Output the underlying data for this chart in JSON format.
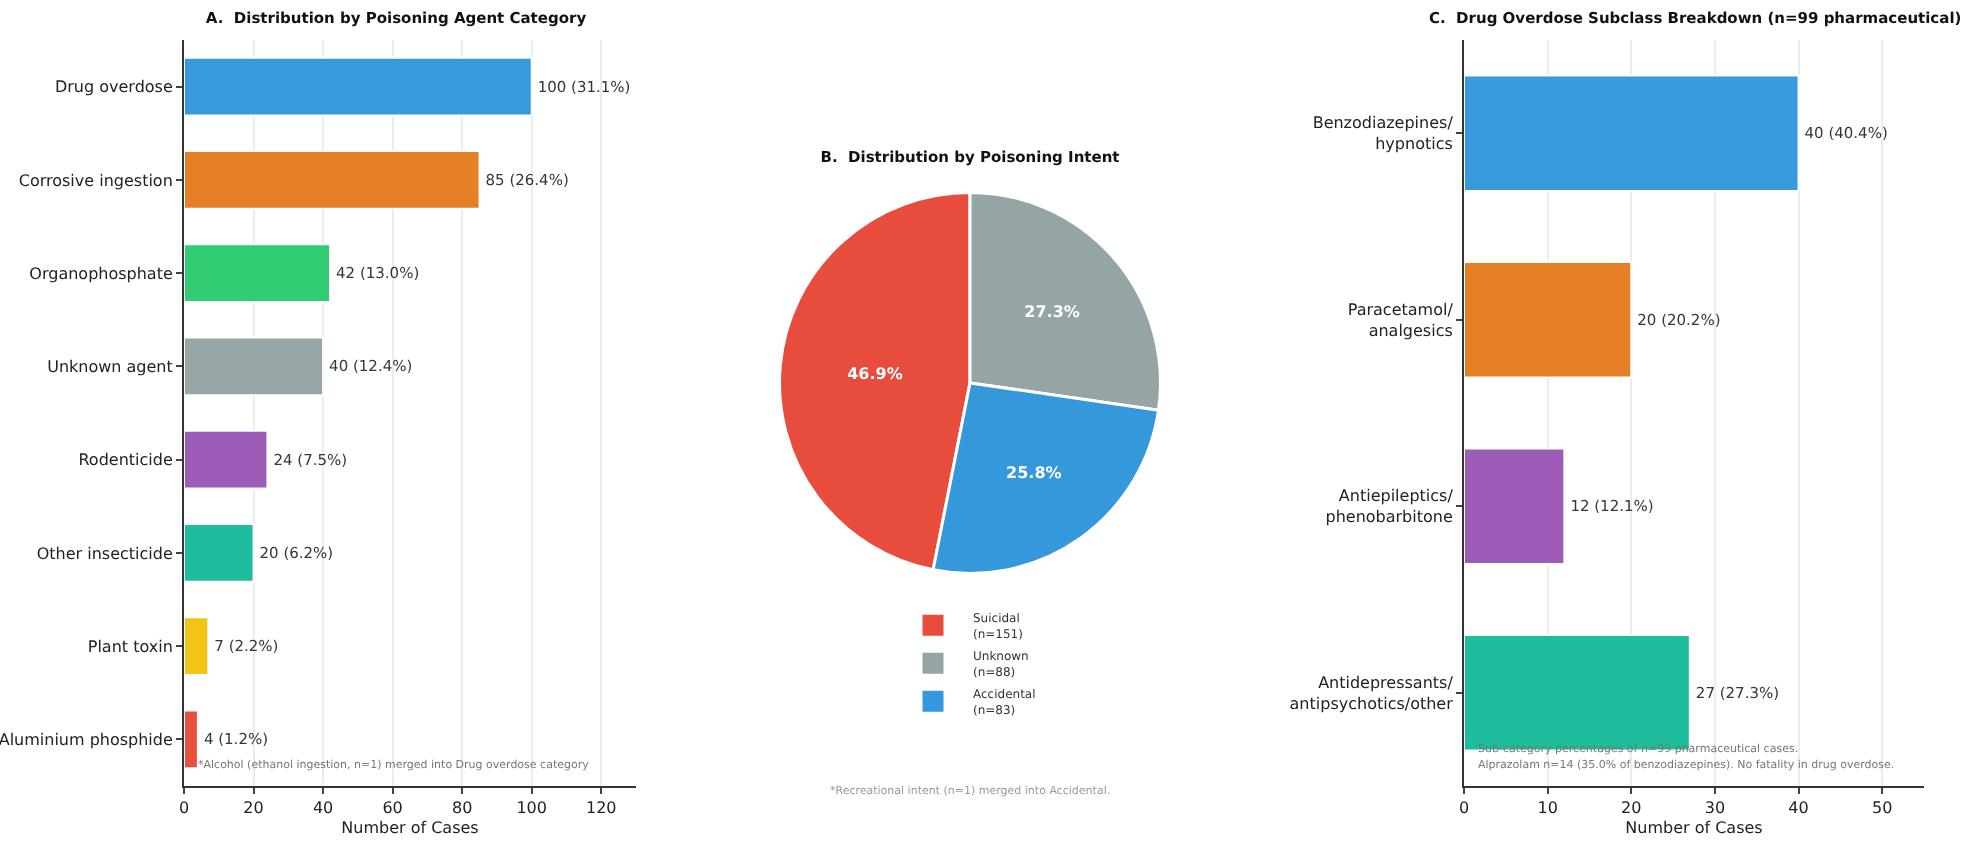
{
  "chart_data": [
    {
      "type": "bar",
      "orientation": "horizontal",
      "title": "A.  Distribution by Poisoning Agent Category",
      "xlabel": "Number of Cases",
      "categories": [
        "Drug overdose",
        "Corrosive ingestion",
        "Organophosphate",
        "Unknown agent",
        "Rodenticide",
        "Other insecticide",
        "Plant toxin",
        "Aluminium phosphide"
      ],
      "values": [
        100,
        85,
        42,
        40,
        24,
        20,
        7,
        4
      ],
      "colors": [
        "#3498db",
        "#e67e22",
        "#2ecc71",
        "#95a5a6",
        "#9b59b6",
        "#1abc9c",
        "#f1c40f",
        "#e74c3c"
      ],
      "value_labels": [
        "100 (31.1%)",
        "85 (26.4%)",
        "42 (13.0%)",
        "40 (12.4%)",
        "24 (7.5%)",
        "20 (6.2%)",
        "7 (2.2%)",
        "4 (1.2%)"
      ],
      "xlim": [
        0,
        130
      ],
      "xticks": [
        0,
        20,
        40,
        60,
        80,
        100,
        120
      ],
      "grid": "x",
      "legend": false,
      "annotations": [
        "*Alcohol (ethanol ingestion, n=1) merged into Drug overdose category"
      ]
    },
    {
      "type": "pie",
      "title": "B.  Distribution by Poisoning Intent",
      "categories": [
        "Suicidal\n(n=151)",
        "Unknown\n(n=88)",
        "Accidental\n(n=83)"
      ],
      "values": [
        46.9,
        27.3,
        25.8
      ],
      "colors": [
        "#e74c3c",
        "#95a5a6",
        "#3498db"
      ],
      "value_labels": [
        "46.9%",
        "27.3%",
        "25.8%"
      ],
      "legend": "bottom",
      "annotations": [
        "*Recreational intent (n=1) merged into Accidental."
      ]
    },
    {
      "type": "bar",
      "orientation": "horizontal",
      "title": "C.  Drug Overdose Subclass Breakdown (n=99 pharmaceutical)",
      "xlabel": "Number of Cases",
      "categories": [
        "Benzodiazepines/\nhypnotics",
        "Paracetamol/\nanalgesics",
        "Antiepileptics/\nphenobarbitone",
        "Antidepressants/\nantipsychotics/other"
      ],
      "values": [
        40,
        20,
        12,
        27
      ],
      "colors": [
        "#3498db",
        "#e67e22",
        "#9b59b6",
        "#1abc9c"
      ],
      "value_labels": [
        "40 (40.4%)",
        "20 (20.2%)",
        "12 (12.1%)",
        "27 (27.3%)"
      ],
      "xlim": [
        0,
        55
      ],
      "xticks": [
        0,
        10,
        20,
        30,
        40,
        50
      ],
      "grid": "x",
      "legend": false,
      "annotations": [
        "Sub-category percentages of n=99 pharmaceutical cases.",
        "Alprazolam n=14 (35.0% of benzodiazepines). No fatality in drug overdose."
      ]
    }
  ]
}
